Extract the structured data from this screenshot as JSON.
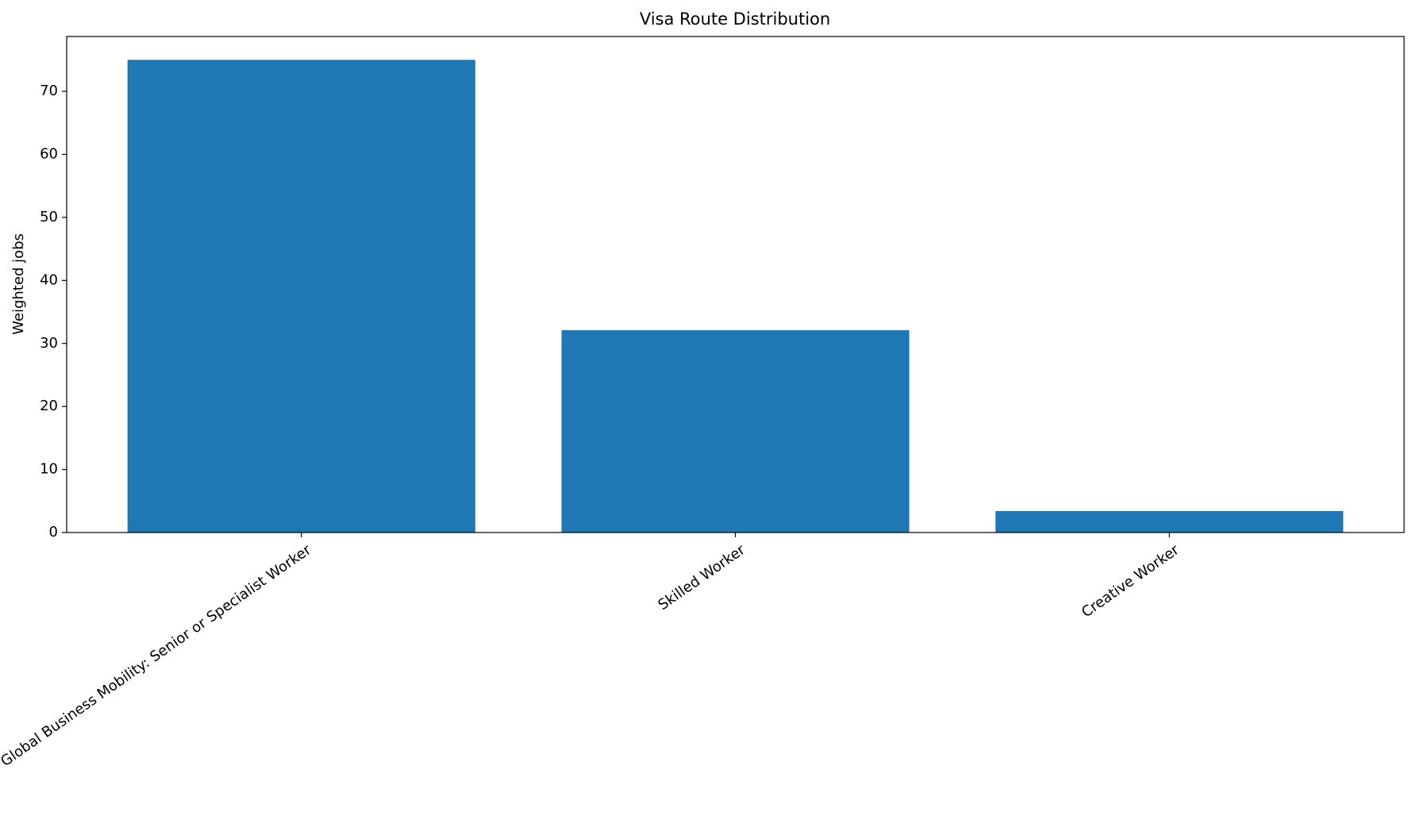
{
  "chart_data": {
    "type": "bar",
    "title": "Visa Route Distribution",
    "y_label": "Weighted jobs",
    "categories": [
      "Global Business Mobility: Senior or Specialist Worker",
      "Skilled Worker",
      "Creative Worker"
    ],
    "values": [
      75,
      32.1,
      3.4
    ],
    "color": "#1f77b4",
    "ylim": [
      0,
      78.7
    ],
    "yticks": [
      0,
      10,
      20,
      30,
      40,
      50,
      60,
      70
    ]
  }
}
